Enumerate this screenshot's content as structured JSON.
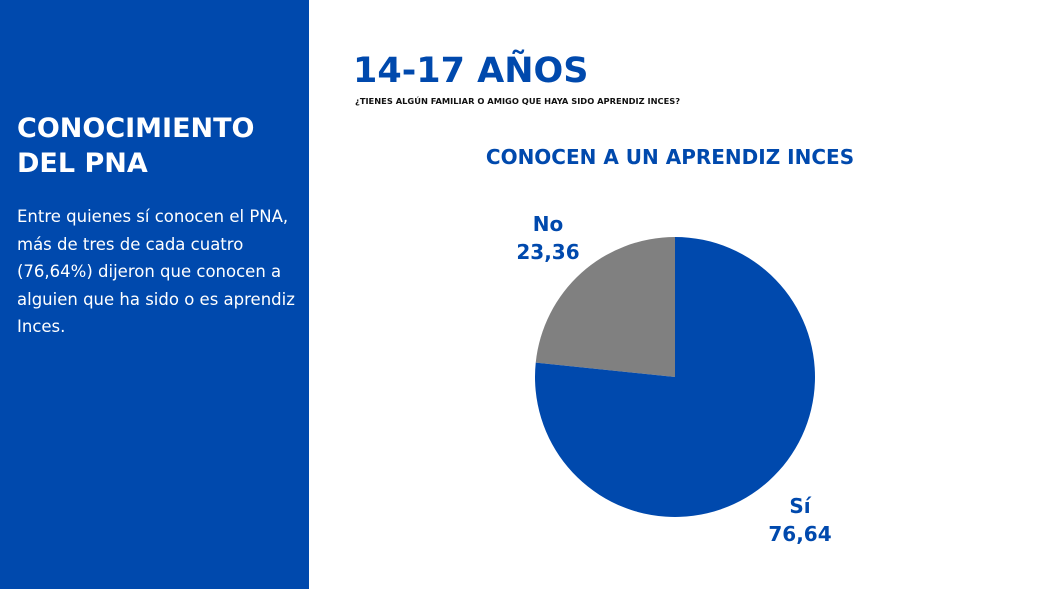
{
  "sidebar": {
    "title": "CONOCIMIENTO\nDEL PNA",
    "body": "Entre quienes sí conocen el PNA, más de tres de cada cuatro (76,64%) dijeron que conocen a alguien que ha sido o es aprendiz Inces."
  },
  "header": {
    "title": "14-17 AÑOS",
    "question": "¿TIENES ALGÚN FAMILIAR O AMIGO QUE HAYA SIDO APRENDIZ INCES?"
  },
  "colors": {
    "brand_blue": "#0049ad",
    "gray": "#808080"
  },
  "chart_data": {
    "type": "pie",
    "title": "CONOCEN A UN APRENDIZ INCES",
    "slices": [
      {
        "label": "No",
        "value": 23.36,
        "value_text": "23,36",
        "color": "#808080"
      },
      {
        "label": "Sí",
        "value": 76.64,
        "value_text": "76,64",
        "color": "#0049ad"
      }
    ]
  }
}
